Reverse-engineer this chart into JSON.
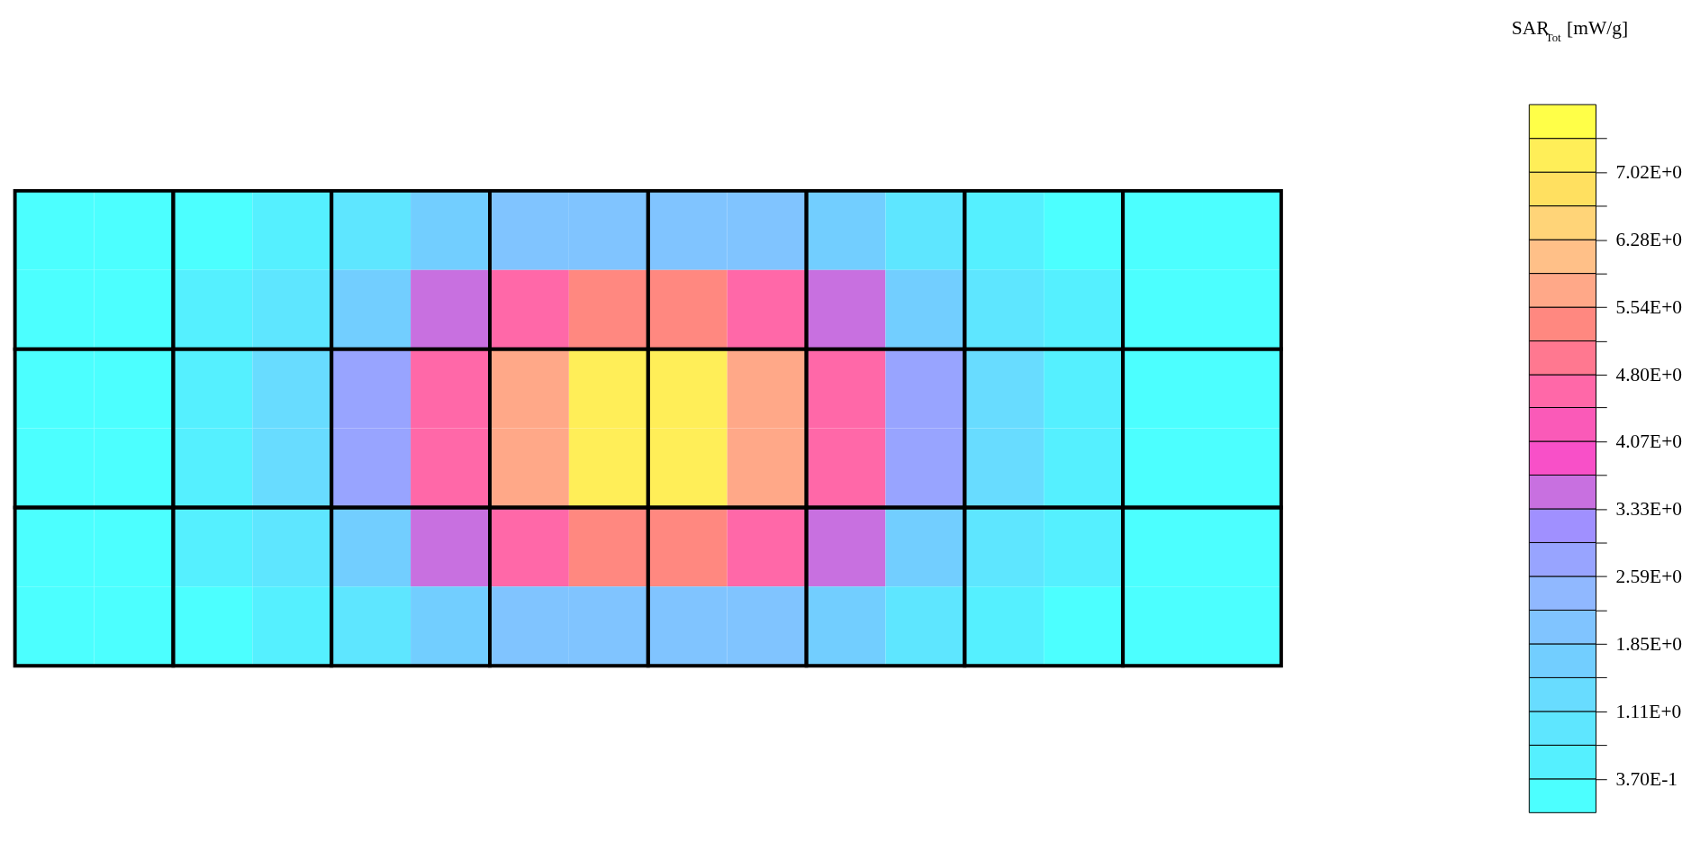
{
  "chart_data": {
    "type": "heatmap",
    "clabel": "SAR$_{Tot}$ [mW/g]",
    "categories": [
      null,
      null,
      null,
      null,
      null,
      null,
      null,
      null,
      null,
      null,
      null,
      null,
      null,
      null,
      null,
      null
    ],
    "y_categories": [
      null,
      null,
      null,
      null,
      null,
      null
    ],
    "cells": [
      [
        0.1,
        0.2,
        0.3,
        0.6,
        1.0,
        1.5,
        1.9,
        2.2,
        2.2,
        1.9,
        1.5,
        1.0,
        0.6,
        0.3,
        0.2,
        0.1
      ],
      [
        0.2,
        0.3,
        0.5,
        0.9,
        1.8,
        3.5,
        4.6,
        5.5,
        5.5,
        4.6,
        3.5,
        1.8,
        0.9,
        0.5,
        0.3,
        0.2
      ],
      [
        0.2,
        0.3,
        0.7,
        1.3,
        2.8,
        4.5,
        5.9,
        7.1,
        7.1,
        5.9,
        4.5,
        2.8,
        1.3,
        0.7,
        0.3,
        0.2
      ],
      [
        0.2,
        0.3,
        0.7,
        1.3,
        2.8,
        4.5,
        5.9,
        7.1,
        7.1,
        5.9,
        4.5,
        2.8,
        1.3,
        0.7,
        0.3,
        0.2
      ],
      [
        0.2,
        0.3,
        0.5,
        0.9,
        1.8,
        3.5,
        4.6,
        5.5,
        5.5,
        4.6,
        3.5,
        1.8,
        0.9,
        0.5,
        0.3,
        0.2
      ],
      [
        0.1,
        0.2,
        0.3,
        0.6,
        1.0,
        1.5,
        1.9,
        2.2,
        2.2,
        1.9,
        1.5,
        1.0,
        0.6,
        0.3,
        0.2,
        0.1
      ]
    ],
    "clim": [
      0,
      7.76
    ],
    "cticks": [
      {
        "value": 0.37,
        "label": "3.70E-1"
      },
      {
        "value": 0.74,
        "label": null
      },
      {
        "value": 1.11,
        "label": "1.11E+0"
      },
      {
        "value": 1.48,
        "label": null
      },
      {
        "value": 1.85,
        "label": "1.85E+0"
      },
      {
        "value": 2.22,
        "label": null
      },
      {
        "value": 2.59,
        "label": "2.59E+0"
      },
      {
        "value": 2.96,
        "label": null
      },
      {
        "value": 3.33,
        "label": "3.33E+0"
      },
      {
        "value": 3.7,
        "label": null
      },
      {
        "value": 4.07,
        "label": "4.07E+0"
      },
      {
        "value": 4.44,
        "label": null
      },
      {
        "value": 4.8,
        "label": "4.80E+0"
      },
      {
        "value": 5.17,
        "label": null
      },
      {
        "value": 5.54,
        "label": "5.54E+0"
      },
      {
        "value": 5.91,
        "label": null
      },
      {
        "value": 6.28,
        "label": "6.28E+0"
      },
      {
        "value": 6.65,
        "label": null
      },
      {
        "value": 7.02,
        "label": "7.02E+0"
      },
      {
        "value": 7.39,
        "label": null
      }
    ],
    "colors": [
      "#4cffff",
      "#55f0ff",
      "#5ee6ff",
      "#68dcff",
      "#72ceff",
      "#80c4ff",
      "#90b8ff",
      "#98a4ff",
      "#a090ff",
      "#c870e0",
      "#f850c8",
      "#fa5ab8",
      "#ff68a8",
      "#ff7890",
      "#ff8880",
      "#ffa888",
      "#ffc088",
      "#ffd478",
      "#ffe060",
      "#ffee58",
      "#ffff48"
    ]
  }
}
